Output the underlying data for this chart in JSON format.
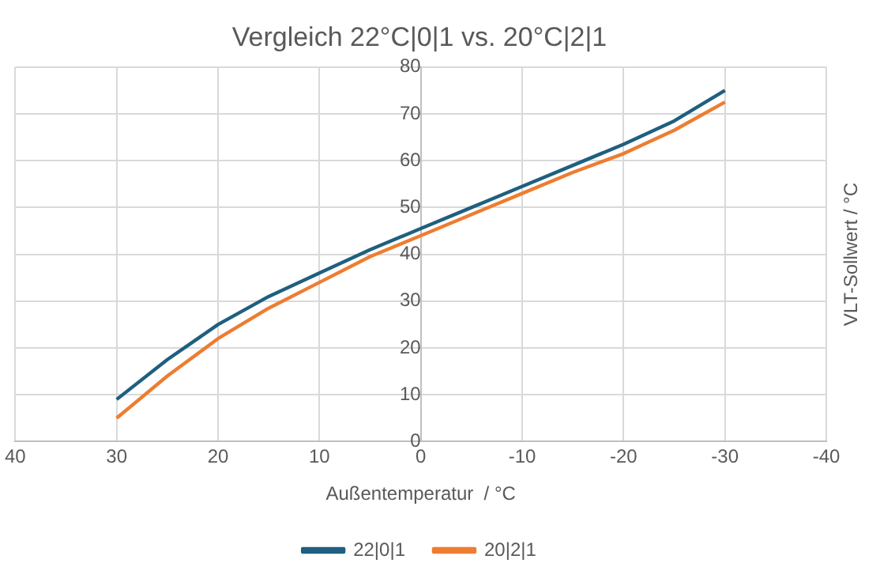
{
  "chart_data": {
    "type": "line",
    "title": "Vergleich 22°C|0|1 vs. 20°C|2|1",
    "xlabel": "Außentemperatur  / °C",
    "ylabel": "VLT-Sollwert / °C",
    "x": [
      30,
      25,
      20,
      15,
      10,
      5,
      0,
      -5,
      -10,
      -15,
      -20,
      -25,
      -30
    ],
    "series": [
      {
        "name": "22|0|1",
        "color": "#1f5f7f",
        "values": [
          9,
          17.5,
          25,
          31,
          36,
          41,
          45.5,
          50,
          54.5,
          59,
          63.5,
          68.5,
          75
        ]
      },
      {
        "name": "20|2|1",
        "color": "#ed7d31",
        "values": [
          5,
          14,
          22,
          28.5,
          34,
          39.5,
          44,
          48.5,
          53,
          57.5,
          61.5,
          66.5,
          72.5
        ]
      }
    ],
    "xlim": [
      40,
      -40
    ],
    "xticks": [
      40,
      30,
      20,
      10,
      0,
      -10,
      -20,
      -30,
      -40
    ],
    "ylim": [
      0,
      80
    ],
    "yticks": [
      0,
      10,
      20,
      30,
      40,
      50,
      60,
      70,
      80
    ],
    "grid": true,
    "legend": "bottom",
    "marker": "none",
    "line_style": "solid"
  }
}
